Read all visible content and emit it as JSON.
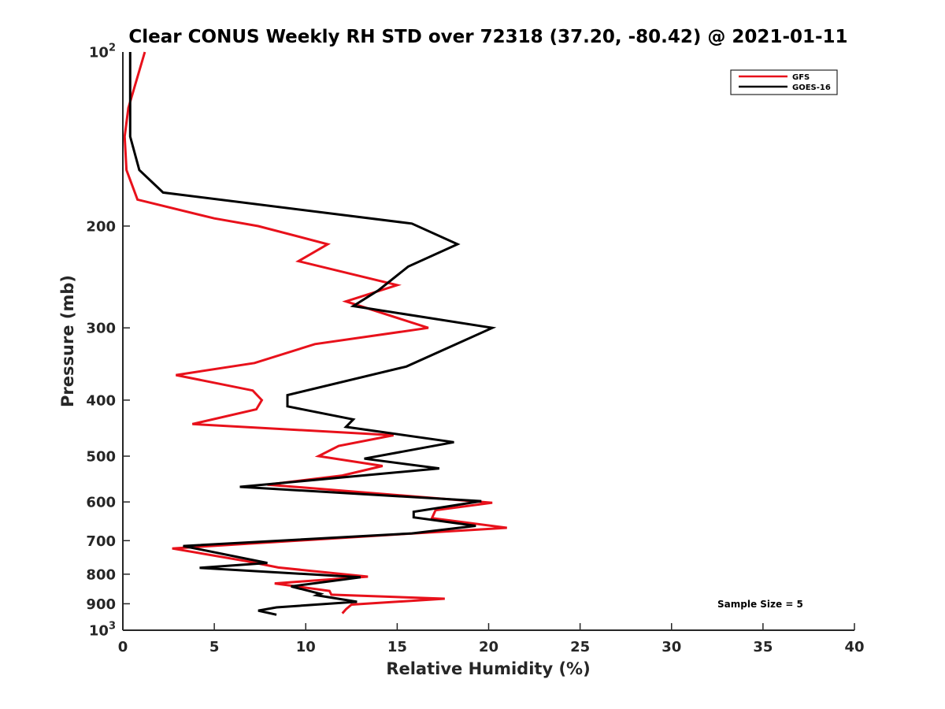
{
  "chart_data": {
    "type": "line",
    "title": "Clear CONUS Weekly RH STD over 72318 (37.20, -80.42) @ 2021-01-11",
    "xlabel": "Relative Humidity (%)",
    "ylabel": "Pressure (mb)",
    "xlim": [
      0,
      40
    ],
    "ylim": [
      100,
      1000
    ],
    "yscale": "log",
    "y_reversed": true,
    "grid": false,
    "legend_position": "top-right",
    "x_ticks": [
      0,
      5,
      10,
      15,
      20,
      25,
      30,
      35,
      40
    ],
    "x_tick_labels": [
      "0",
      "5",
      "10",
      "15",
      "20",
      "25",
      "30",
      "35",
      "40"
    ],
    "y_ticks": [
      200,
      300,
      400,
      500,
      600,
      700,
      800,
      900
    ],
    "y_tick_labels": [
      "200",
      "300",
      "400",
      "500",
      "600",
      "700",
      "800",
      "900"
    ],
    "y_decade_ticks": [
      {
        "value": 100,
        "base": "10",
        "exp": "2"
      },
      {
        "value": 1000,
        "base": "10",
        "exp": "3"
      }
    ],
    "annotation": "Sample Size = 5",
    "series": [
      {
        "name": "GFS",
        "color": "#e8111b",
        "points": [
          [
            1.2,
            100
          ],
          [
            0.3,
            125
          ],
          [
            0.1,
            140
          ],
          [
            0.2,
            160
          ],
          [
            0.8,
            180
          ],
          [
            5.0,
            194
          ],
          [
            7.4,
            200
          ],
          [
            11.2,
            215
          ],
          [
            9.6,
            230
          ],
          [
            15.0,
            253
          ],
          [
            12.2,
            270
          ],
          [
            16.7,
            300
          ],
          [
            10.5,
            320
          ],
          [
            7.2,
            345
          ],
          [
            2.9,
            362
          ],
          [
            7.1,
            385
          ],
          [
            7.6,
            400
          ],
          [
            7.3,
            415
          ],
          [
            3.8,
            440
          ],
          [
            14.8,
            460
          ],
          [
            11.8,
            480
          ],
          [
            10.7,
            500
          ],
          [
            14.2,
            520
          ],
          [
            12.0,
            540
          ],
          [
            7.9,
            560
          ],
          [
            20.2,
            602
          ],
          [
            17.1,
            620
          ],
          [
            16.9,
            640
          ],
          [
            21.0,
            665
          ],
          [
            15.9,
            680
          ],
          [
            2.7,
            722
          ],
          [
            6.8,
            760
          ],
          [
            8.5,
            779
          ],
          [
            13.4,
            808
          ],
          [
            8.3,
            830
          ],
          [
            11.3,
            855
          ],
          [
            11.4,
            868
          ],
          [
            17.6,
            882
          ],
          [
            12.5,
            903
          ],
          [
            12.2,
            920
          ],
          [
            12.0,
            935
          ]
        ]
      },
      {
        "name": "GOES-16",
        "color": "#000000",
        "points": [
          [
            0.4,
            100
          ],
          [
            0.4,
            120
          ],
          [
            0.4,
            140
          ],
          [
            0.9,
            160
          ],
          [
            2.2,
            175
          ],
          [
            15.8,
            198
          ],
          [
            18.3,
            215
          ],
          [
            15.6,
            235
          ],
          [
            14.0,
            258
          ],
          [
            12.6,
            275
          ],
          [
            20.2,
            300
          ],
          [
            15.5,
            350
          ],
          [
            9.0,
            392
          ],
          [
            9.0,
            410
          ],
          [
            12.6,
            432
          ],
          [
            12.2,
            445
          ],
          [
            18.1,
            473
          ],
          [
            13.2,
            505
          ],
          [
            17.3,
            525
          ],
          [
            6.4,
            565
          ],
          [
            19.6,
            598
          ],
          [
            15.9,
            624
          ],
          [
            15.9,
            638
          ],
          [
            19.3,
            660
          ],
          [
            15.8,
            680
          ],
          [
            3.3,
            715
          ],
          [
            7.9,
            765
          ],
          [
            4.2,
            780
          ],
          [
            13.0,
            810
          ],
          [
            9.2,
            840
          ],
          [
            10.8,
            865
          ],
          [
            10.6,
            870
          ],
          [
            12.8,
            893
          ],
          [
            8.4,
            913
          ],
          [
            7.4,
            925
          ],
          [
            8.4,
            940
          ]
        ]
      }
    ]
  }
}
